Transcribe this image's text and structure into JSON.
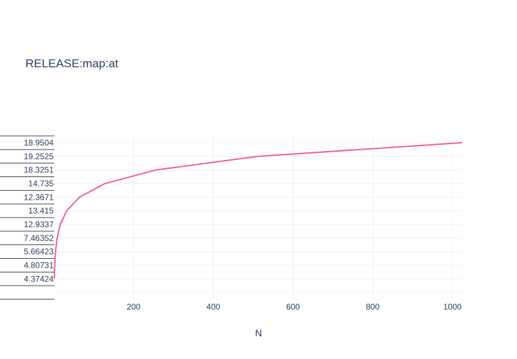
{
  "chart_data": {
    "type": "line",
    "title": "RELEASE:map:at",
    "xlabel": "N",
    "ylabel": "",
    "xlim": [
      1,
      1024
    ],
    "x_ticks": [
      200,
      400,
      600,
      800,
      1000
    ],
    "y_axis_type": "category",
    "y_categories": [
      "",
      "4.37424",
      "4.80731",
      "5.66423",
      "7.46352",
      "12.9337",
      "13.415",
      "12.3671",
      "14.735",
      "18.3251",
      "19.2525",
      "18.9504"
    ],
    "grid": true,
    "legend": "none",
    "series": [
      {
        "color": "#f0609e",
        "x": [
          1,
          2,
          4,
          8,
          16,
          32,
          64,
          128,
          256,
          512,
          1024
        ],
        "y": [
          "4.37424",
          "4.80731",
          "5.66423",
          "7.46352",
          "12.9337",
          "13.415",
          "12.3671",
          "14.735",
          "18.3251",
          "19.2525",
          "18.9504"
        ]
      }
    ]
  },
  "colors": {
    "line": "#f0609e",
    "grid": "#ebf0f8",
    "text": "#2a3f5f",
    "axis_line": "#444444"
  }
}
